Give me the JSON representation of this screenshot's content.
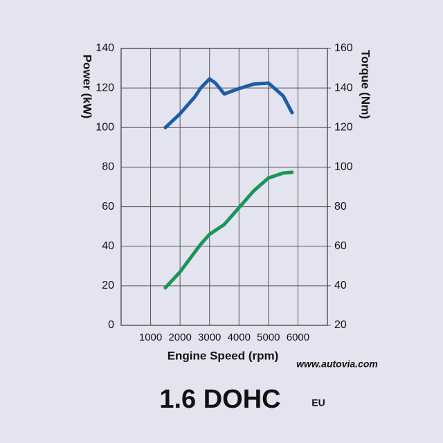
{
  "chart_data": {
    "type": "line",
    "title": "1.6 DOHC",
    "subtitle": "EU",
    "source": "www.autovia.com",
    "x_label": "Engine Speed (rpm)",
    "y_label": "Power (kW)",
    "y2_label": "Torque (Nm)",
    "x": [
      1500,
      2000,
      2500,
      2700,
      3000,
      3200,
      3500,
      4000,
      4500,
      5000,
      5500,
      5800
    ],
    "series": [
      {
        "name": "Power",
        "color": "#1a9658",
        "values": [
          19,
          27,
          37,
          41,
          46,
          48,
          51,
          59.5,
          68,
          74.5,
          77,
          77.4
        ]
      },
      {
        "name": "Torque",
        "color": "#1f5ca6",
        "axis": "y2",
        "values": [
          120,
          127,
          135.5,
          140,
          144.6,
          142.5,
          137,
          139.7,
          142,
          142.5,
          136,
          127.5
        ]
      }
    ],
    "xlim": [
      0,
      7000
    ],
    "xticks": [
      1000,
      2000,
      3000,
      4000,
      5000,
      6000
    ],
    "ylim": [
      0,
      140
    ],
    "yticks": [
      0,
      20,
      40,
      60,
      80,
      100,
      120,
      140
    ],
    "y2lim": [
      20,
      160
    ],
    "y2ticks": [
      20,
      40,
      60,
      80,
      100,
      120,
      140,
      160
    ],
    "grid": true
  }
}
